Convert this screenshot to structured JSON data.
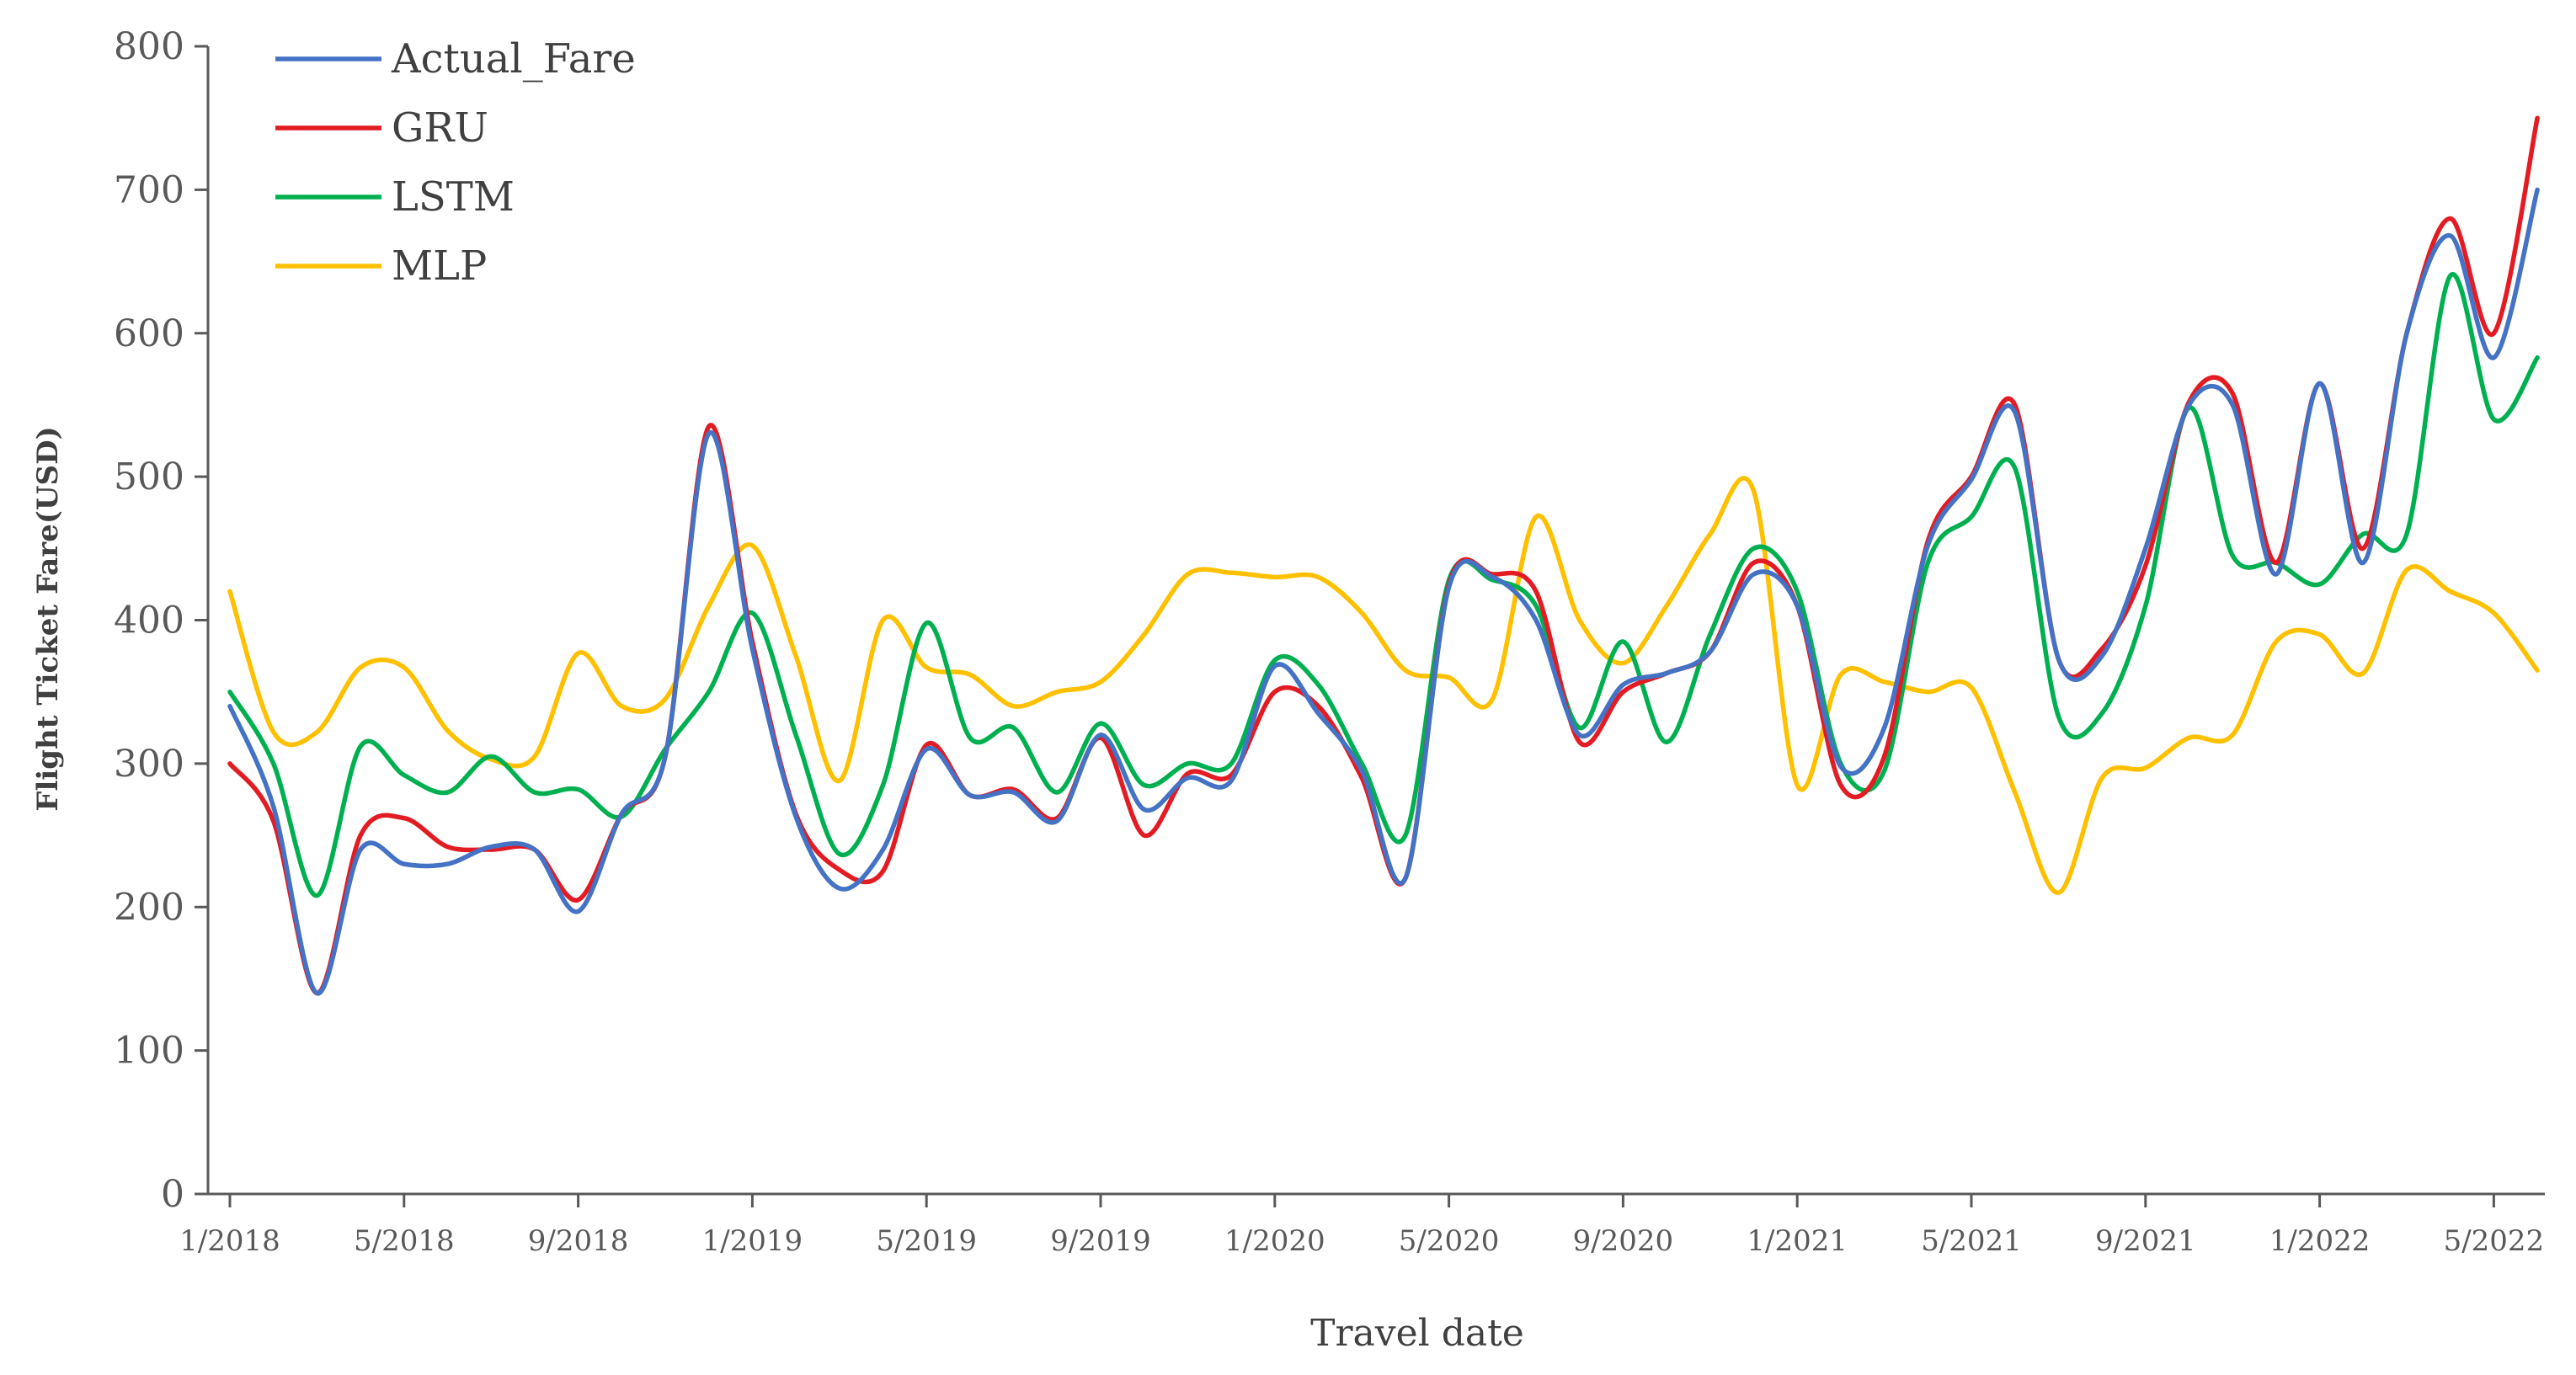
{
  "chart_data": {
    "type": "line",
    "title": "",
    "xlabel": "Travel date",
    "ylabel": "Flight Ticket Fare(USD)",
    "ylim": [
      0,
      800
    ],
    "yticks": [
      0,
      100,
      200,
      300,
      400,
      500,
      600,
      700,
      800
    ],
    "grid": false,
    "legend_position": "top-left",
    "x_tick_labels": [
      "1/2018",
      "5/2018",
      "9/2018",
      "1/2019",
      "5/2019",
      "9/2019",
      "1/2020",
      "5/2020",
      "9/2020",
      "1/2021",
      "5/2021",
      "9/2021",
      "1/2022",
      "5/2022"
    ],
    "x": [
      "1/2018",
      "2/2018",
      "3/2018",
      "4/2018",
      "5/2018",
      "6/2018",
      "7/2018",
      "8/2018",
      "9/2018",
      "10/2018",
      "11/2018",
      "12/2018",
      "1/2019",
      "2/2019",
      "3/2019",
      "4/2019",
      "5/2019",
      "6/2019",
      "7/2019",
      "8/2019",
      "9/2019",
      "10/2019",
      "11/2019",
      "12/2019",
      "1/2020",
      "2/2020",
      "3/2020",
      "4/2020",
      "5/2020",
      "6/2020",
      "7/2020",
      "8/2020",
      "9/2020",
      "10/2020",
      "11/2020",
      "12/2020",
      "1/2021",
      "2/2021",
      "3/2021",
      "4/2021",
      "5/2021",
      "6/2021",
      "7/2021",
      "8/2021",
      "9/2021",
      "10/2021",
      "11/2021",
      "12/2021",
      "1/2022",
      "2/2022",
      "3/2022",
      "4/2022",
      "5/2022",
      "6/2022"
    ],
    "series": [
      {
        "name": "Actual_Fare",
        "color": "#4472C4",
        "values": [
          340,
          270,
          140,
          240,
          230,
          230,
          242,
          240,
          197,
          265,
          305,
          530,
          380,
          263,
          213,
          240,
          310,
          278,
          280,
          260,
          320,
          268,
          290,
          288,
          368,
          335,
          295,
          220,
          423,
          430,
          400,
          320,
          355,
          363,
          378,
          432,
          410,
          298,
          325,
          452,
          498,
          545,
          373,
          375,
          450,
          550,
          550,
          432,
          565,
          440,
          600,
          668,
          583,
          700
        ]
      },
      {
        "name": "GRU",
        "color": "#E31B23",
        "values": [
          300,
          260,
          140,
          250,
          262,
          242,
          240,
          240,
          205,
          265,
          305,
          535,
          385,
          265,
          226,
          225,
          313,
          278,
          282,
          262,
          318,
          250,
          293,
          292,
          350,
          340,
          290,
          220,
          425,
          432,
          420,
          315,
          350,
          363,
          378,
          440,
          410,
          285,
          305,
          455,
          500,
          550,
          373,
          380,
          438,
          552,
          558,
          440,
          565,
          450,
          600,
          680,
          600,
          750
        ]
      },
      {
        "name": "LSTM",
        "color": "#00B050",
        "values": [
          350,
          300,
          208,
          312,
          292,
          280,
          305,
          280,
          282,
          263,
          310,
          350,
          405,
          320,
          237,
          285,
          398,
          318,
          325,
          280,
          328,
          285,
          300,
          300,
          372,
          355,
          300,
          250,
          428,
          428,
          410,
          325,
          385,
          315,
          390,
          450,
          420,
          300,
          295,
          440,
          472,
          506,
          333,
          335,
          410,
          548,
          445,
          440,
          425,
          460,
          460,
          640,
          540,
          583
        ]
      },
      {
        "name": "MLP",
        "color": "#FFC000",
        "values": [
          420,
          322,
          322,
          367,
          367,
          323,
          303,
          305,
          377,
          340,
          345,
          410,
          452,
          375,
          288,
          400,
          367,
          362,
          340,
          350,
          357,
          390,
          432,
          433,
          430,
          430,
          405,
          365,
          360,
          345,
          472,
          400,
          370,
          410,
          460,
          490,
          285,
          362,
          357,
          350,
          353,
          280,
          210,
          290,
          297,
          318,
          320,
          385,
          390,
          363,
          435,
          420,
          405,
          365
        ]
      }
    ]
  }
}
